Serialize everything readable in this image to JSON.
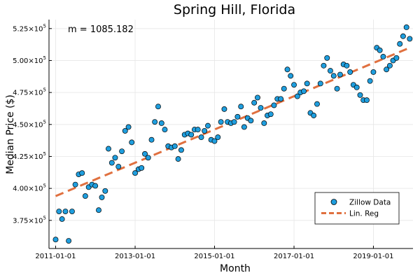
{
  "chart_data": {
    "type": "scatter",
    "title": "Spring Hill, Florida",
    "xlabel": "Month",
    "ylabel": "Median Price ($)",
    "annotation": "m = 1085.182",
    "x_tick_labels": [
      "2011-01-01",
      "2013-01-01",
      "2015-01-01",
      "2017-01-01",
      "2019-01-01"
    ],
    "y_tick_labels": [
      {
        "mant": "3.75",
        "exp": "5"
      },
      {
        "mant": "4.00",
        "exp": "5"
      },
      {
        "mant": "4.25",
        "exp": "5"
      },
      {
        "mant": "4.50",
        "exp": "5"
      },
      {
        "mant": "4.75",
        "exp": "5"
      },
      {
        "mant": "5.00",
        "exp": "5"
      },
      {
        "mant": "5.25",
        "exp": "5"
      }
    ],
    "y_ticks": [
      375000,
      400000,
      425000,
      450000,
      475000,
      500000,
      525000
    ],
    "x_range": [
      "2010-11-01",
      "2019-12-31"
    ],
    "y_range": [
      353000,
      532000
    ],
    "grid": true,
    "legend": {
      "position": "bottom-right",
      "entries": [
        "Zillow Data",
        "Lin. Reg"
      ]
    },
    "colors": {
      "points": "#1f9ede",
      "point_edge": "#000000",
      "regression": "#e0703f",
      "grid": "#e6e6e6"
    },
    "series": [
      {
        "name": "Zillow Data",
        "type": "scatter",
        "x_start": "2011-01-01",
        "x_step": "1 month",
        "values": [
          360000,
          382000,
          376000,
          382000,
          359000,
          382000,
          403000,
          411000,
          412000,
          394000,
          401000,
          403000,
          402000,
          383000,
          393000,
          398000,
          431000,
          420000,
          424000,
          417000,
          429000,
          445000,
          448000,
          436000,
          412000,
          415000,
          416000,
          427000,
          424000,
          438000,
          452000,
          464000,
          451000,
          446000,
          433000,
          432000,
          433000,
          423000,
          430000,
          442000,
          443000,
          442000,
          446000,
          446000,
          440000,
          445000,
          449000,
          438000,
          437000,
          440000,
          452000,
          462000,
          452000,
          451000,
          452000,
          456000,
          464000,
          448000,
          455000,
          453000,
          467000,
          471000,
          463000,
          451000,
          457000,
          458000,
          465000,
          470000,
          470000,
          478000,
          493000,
          488000,
          481000,
          472000,
          475000,
          476000,
          482000,
          459000,
          457000,
          466000,
          482000,
          496000,
          502000,
          492000,
          488000,
          478000,
          489000,
          497000,
          496000,
          491000,
          481000,
          479000,
          473000,
          469000,
          469000,
          484000,
          491000,
          510000,
          508000,
          503000,
          493000,
          496000,
          500000,
          502000,
          513000,
          519000,
          526000,
          517000
        ]
      },
      {
        "name": "Lin. Reg",
        "type": "line",
        "x": [
          "2011-01-01",
          "2019-12-01"
        ],
        "values": [
          394000,
          510000
        ]
      }
    ]
  }
}
